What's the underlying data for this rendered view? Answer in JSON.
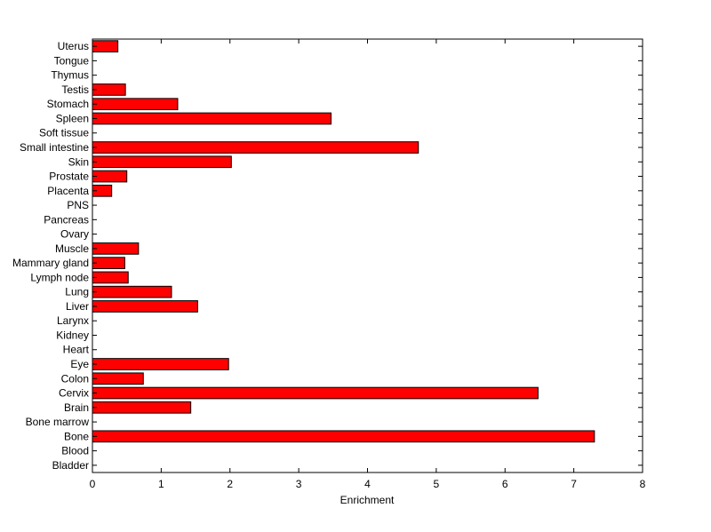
{
  "chart_data": {
    "type": "bar",
    "orientation": "horizontal",
    "title": "",
    "xlabel": "Enrichment",
    "ylabel": "",
    "xlim": [
      0,
      8
    ],
    "xticks": [
      "0",
      "1",
      "2",
      "3",
      "4",
      "5",
      "6",
      "7",
      "8"
    ],
    "grid": false,
    "legend": "none",
    "bar_color": "#ff0000",
    "categories": [
      "Bladder",
      "Blood",
      "Bone",
      "Bone marrow",
      "Brain",
      "Cervix",
      "Colon",
      "Eye",
      "Heart",
      "Kidney",
      "Larynx",
      "Liver",
      "Lung",
      "Lymph node",
      "Mammary gland",
      "Muscle",
      "Ovary",
      "Pancreas",
      "PNS",
      "Placenta",
      "Prostate",
      "Skin",
      "Small intestine",
      "Soft tissue",
      "Spleen",
      "Stomach",
      "Testis",
      "Thymus",
      "Tongue",
      "Uterus"
    ],
    "values": [
      0,
      0,
      7.3,
      0,
      1.43,
      6.48,
      0.74,
      1.98,
      0,
      0,
      0,
      1.53,
      1.15,
      0.52,
      0.47,
      0.67,
      0,
      0,
      0,
      0.28,
      0.5,
      2.02,
      4.74,
      0,
      3.47,
      1.24,
      0.48,
      0,
      0,
      0.37
    ]
  }
}
